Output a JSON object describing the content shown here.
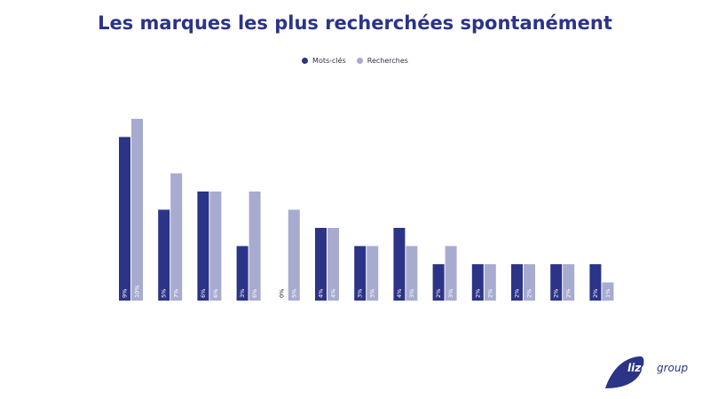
{
  "chart_data": {
    "type": "bar",
    "title": "Les marques les plus recherchées spontanément",
    "xlabel": "",
    "ylabel": "",
    "ylim": [
      0,
      10
    ],
    "grid": false,
    "legend_position": "top-center",
    "categories": [
      "",
      "",
      "",
      "",
      "",
      "",
      "",
      "",
      "",
      "",
      "",
      "",
      ""
    ],
    "series": [
      {
        "name": "Mots-clés",
        "color": "#2b3487",
        "values": [
          9,
          5,
          6,
          3,
          0,
          4,
          3,
          4,
          2,
          2,
          2,
          2,
          2
        ],
        "labels": [
          "9%",
          "5%",
          "6%",
          "3%",
          "0%",
          "4%",
          "3%",
          "4%",
          "2%",
          "2%",
          "2%",
          "2%",
          "2%"
        ]
      },
      {
        "name": "Recherches",
        "color": "#a7abd0",
        "values": [
          10,
          7,
          6,
          6,
          5,
          4,
          3,
          3,
          3,
          2,
          2,
          2,
          1
        ],
        "labels": [
          "10%",
          "7%",
          "6%",
          "6%",
          "5%",
          "4%",
          "3%",
          "3%",
          "3%",
          "2%",
          "2%",
          "2%",
          "1%"
        ]
      }
    ]
  },
  "logo": {
    "brand": "lizeo",
    "suffix": "group",
    "color": "#2b3487"
  }
}
